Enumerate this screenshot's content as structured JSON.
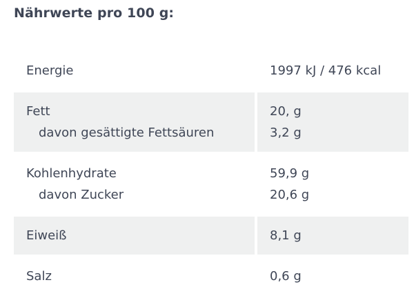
{
  "title": "Nährwerte pro 100 g:",
  "rows": [
    {
      "labels": [
        "Energie"
      ],
      "values": [
        "1997 kJ / 476 kcal"
      ]
    },
    {
      "labels": [
        "Fett",
        "davon gesättigte Fettsäuren"
      ],
      "values": [
        "20, g",
        "3,2 g"
      ]
    },
    {
      "labels": [
        "Kohlenhydrate",
        "davon Zucker"
      ],
      "values": [
        "59,9 g",
        "20,6 g"
      ]
    },
    {
      "labels": [
        "Eiweiß"
      ],
      "values": [
        "8,1 g"
      ]
    },
    {
      "labels": [
        "Salz"
      ],
      "values": [
        "0,6 g"
      ]
    }
  ]
}
